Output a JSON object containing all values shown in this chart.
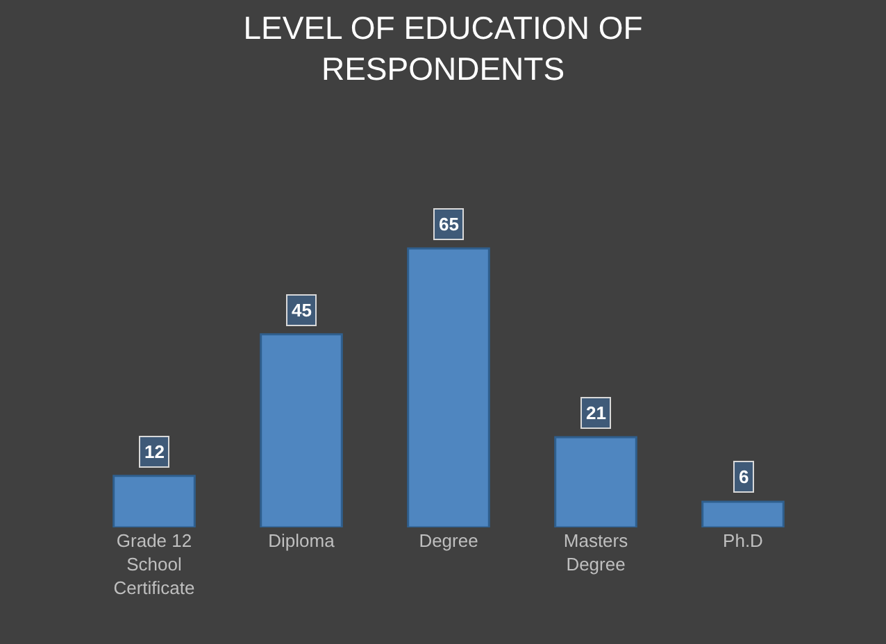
{
  "chart_data": {
    "type": "bar",
    "title": "LEVEL OF EDUCATION OF RESPONDENTS",
    "categories": [
      "Grade 12 School Certificate",
      "Diploma",
      "Degree",
      "Masters Degree",
      "Ph.D"
    ],
    "values": [
      12,
      45,
      65,
      21,
      6
    ],
    "color": "#4f86c0",
    "data_labels": true
  }
}
